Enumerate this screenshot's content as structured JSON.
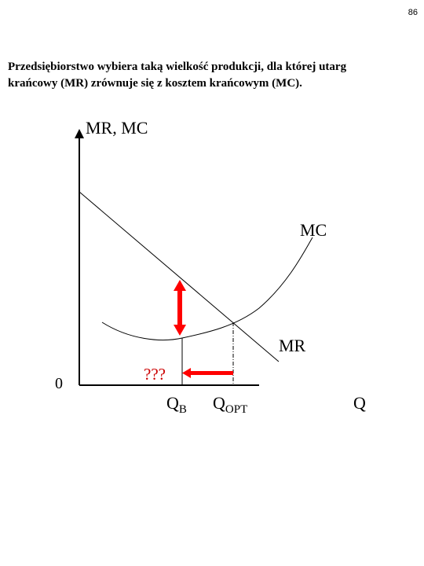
{
  "page": {
    "number": "86"
  },
  "statement": {
    "line1": "Przedsiębiorstwo wybiera taką wielkość produkcji, dla której utarg",
    "line2": "krańcowy (MR) zrównuje się z kosztem krańcowym (MC)."
  },
  "diagram": {
    "y_axis_label": "MR, MC",
    "x_axis_label": "Q",
    "origin_label": "0",
    "mc_label": "MC",
    "mr_label": "MR",
    "qb_main": "Q",
    "qb_sub": "B",
    "qopt_main": "Q",
    "qopt_sub": "OPT",
    "gap_label": "???",
    "colors": {
      "lines": "#000000",
      "arrows": "#ff0000",
      "gap_label": "#cc0000"
    }
  }
}
